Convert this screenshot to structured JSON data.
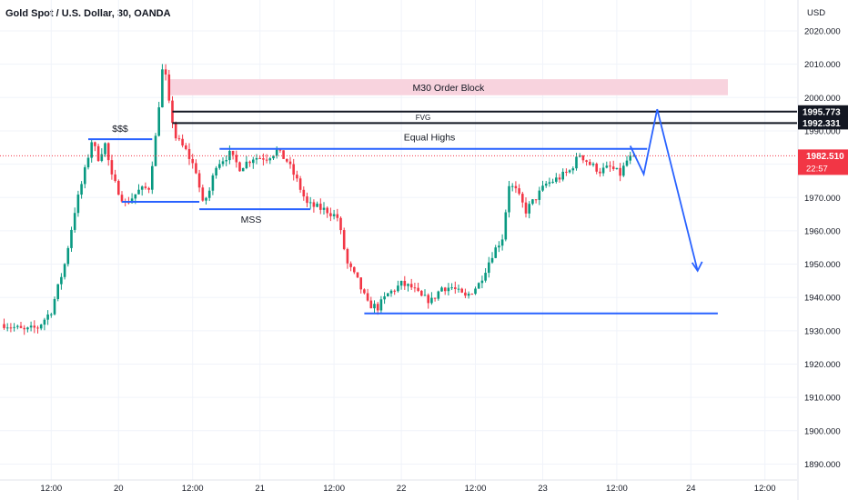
{
  "header": {
    "title": "Gold Spot / U.S. Dollar, 30, OANDA"
  },
  "axis": {
    "currency": "USD"
  },
  "chart_data": {
    "type": "candlestick",
    "ylim": [
      1885,
      2025
    ],
    "yticks": [
      "2020.000",
      "2010.000",
      "2000.000",
      "1990.000",
      "1980.000",
      "1970.000",
      "1960.000",
      "1950.000",
      "1940.000",
      "1930.000",
      "1920.000",
      "1910.000",
      "1900.000",
      "1890.000"
    ],
    "xticks": [
      {
        "label": "12:00",
        "i": 14
      },
      {
        "label": "20",
        "i": 34
      },
      {
        "label": "12:00",
        "i": 56
      },
      {
        "label": "21",
        "i": 76
      },
      {
        "label": "12:00",
        "i": 98
      },
      {
        "label": "22",
        "i": 118
      },
      {
        "label": "12:00",
        "i": 140
      },
      {
        "label": "23",
        "i": 160
      },
      {
        "label": "12:00",
        "i": 182
      },
      {
        "label": "24",
        "i": 204
      },
      {
        "label": "12:00",
        "i": 226
      }
    ],
    "price_path": [
      [
        0,
        1932
      ],
      [
        6,
        1930
      ],
      [
        10,
        1931
      ],
      [
        14,
        1936
      ],
      [
        18,
        1950
      ],
      [
        21,
        1966
      ],
      [
        24,
        1978
      ],
      [
        26,
        1987
      ],
      [
        28,
        1982
      ],
      [
        30,
        1986
      ],
      [
        32,
        1976
      ],
      [
        34,
        1972
      ],
      [
        36,
        1968
      ],
      [
        38,
        1970
      ],
      [
        40,
        1972
      ],
      [
        43,
        1973
      ],
      [
        45,
        1988
      ],
      [
        47,
        2008
      ],
      [
        48,
        2006
      ],
      [
        49,
        1998
      ],
      [
        51,
        1988
      ],
      [
        54,
        1984
      ],
      [
        57,
        1978
      ],
      [
        59,
        1968
      ],
      [
        61,
        1972
      ],
      [
        63,
        1980
      ],
      [
        67,
        1983
      ],
      [
        70,
        1979
      ],
      [
        74,
        1982
      ],
      [
        78,
        1982
      ],
      [
        81,
        1984
      ],
      [
        84,
        1981
      ],
      [
        87,
        1975
      ],
      [
        90,
        1968
      ],
      [
        93,
        1967
      ],
      [
        96,
        1966
      ],
      [
        99,
        1964
      ],
      [
        102,
        1950
      ],
      [
        105,
        1945
      ],
      [
        108,
        1938
      ],
      [
        111,
        1937
      ],
      [
        114,
        1941
      ],
      [
        118,
        1944
      ],
      [
        121,
        1943
      ],
      [
        124,
        1940
      ],
      [
        127,
        1939
      ],
      [
        130,
        1943
      ],
      [
        133,
        1943
      ],
      [
        137,
        1940
      ],
      [
        141,
        1944
      ],
      [
        145,
        1953
      ],
      [
        148,
        1958
      ],
      [
        150,
        1974
      ],
      [
        152,
        1972
      ],
      [
        155,
        1966
      ],
      [
        158,
        1970
      ],
      [
        161,
        1974
      ],
      [
        165,
        1976
      ],
      [
        168,
        1978
      ],
      [
        171,
        1983
      ],
      [
        174,
        1980
      ],
      [
        177,
        1978
      ],
      [
        180,
        1979
      ],
      [
        183,
        1977
      ],
      [
        185,
        1981
      ],
      [
        187,
        1982.51
      ]
    ],
    "candle_count": 188,
    "current_price": "1982.510",
    "countdown": "22:57",
    "price_labels": [
      "1995.773",
      "1992.331"
    ],
    "annotations": {
      "order_block": {
        "label": "M30 Order Block",
        "y1": 2000.7,
        "y2": 2005.5,
        "i_start": 49,
        "i_end": 215,
        "color": "#f8d3de"
      },
      "fvg": {
        "label": "FVG",
        "y1": 1992.331,
        "y2": 1995.773,
        "i_start": 50
      },
      "equal_highs": {
        "label": "Equal Highs",
        "y": 1984.6,
        "i_start": 64,
        "i_end": 191
      },
      "sss": {
        "label": "$$$",
        "y": 1987.5,
        "i_start": 25,
        "i_end": 44
      },
      "mss": {
        "label": "MSS",
        "y": 1966.5,
        "i_start": 58,
        "i_end": 91
      },
      "low_left": {
        "y": 1968.7,
        "i_start": 35,
        "i_end": 58
      },
      "support": {
        "y": 1935.2,
        "i_start": 107,
        "i_end": 212
      },
      "projection": [
        [
          186,
          1985.5
        ],
        [
          190,
          1977
        ],
        [
          194,
          1996.5
        ],
        [
          206,
          1948
        ]
      ]
    },
    "colors": {
      "up": "#089981",
      "down": "#f23645",
      "line": "#2962ff",
      "grid": "#f0f3fa"
    }
  }
}
